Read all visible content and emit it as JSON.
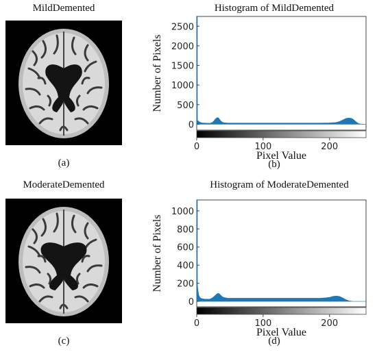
{
  "panels": [
    {
      "image_title": "MildDemented",
      "image_caption": "(a)",
      "chart_title": "Histogram of MildDemented",
      "chart_caption": "(b)"
    },
    {
      "image_title": "ModerateDemented",
      "image_caption": "(c)",
      "chart_title": "Histogram of ModerateDemented",
      "chart_caption": "(d)"
    }
  ],
  "colors": {
    "bar": "#1f77b4",
    "axis": "#444444"
  },
  "chart_data": [
    {
      "type": "area",
      "title": "Histogram of MildDemented",
      "xlabel": "Pixel Value",
      "ylabel": "Number of Pixels",
      "xlim": [
        0,
        255
      ],
      "ylim": [
        -150,
        2750
      ],
      "xticks": [
        0,
        100,
        200
      ],
      "yticks": [
        0,
        500,
        1000,
        1500,
        2000,
        2500
      ],
      "series": [
        {
          "x": [
            0,
            1,
            2,
            3,
            5,
            8,
            12,
            16,
            20,
            24,
            27,
            29,
            31,
            33,
            35,
            37,
            39,
            41,
            44,
            48,
            55,
            70,
            90,
            110,
            130,
            150,
            170,
            185,
            200,
            210,
            215,
            220,
            225,
            230,
            233,
            236,
            240,
            244,
            248,
            255
          ],
          "y": [
            2750,
            100,
            90,
            70,
            50,
            35,
            30,
            25,
            25,
            50,
            110,
            150,
            170,
            160,
            110,
            70,
            50,
            40,
            35,
            30,
            30,
            30,
            30,
            30,
            30,
            30,
            30,
            30,
            35,
            45,
            70,
            110,
            150,
            160,
            150,
            120,
            60,
            15,
            5,
            0
          ]
        }
      ]
    },
    {
      "type": "area",
      "title": "Histogram of ModerateDemented",
      "xlabel": "Pixel Value",
      "ylabel": "Number of Pixels",
      "xlim": [
        0,
        255
      ],
      "ylim": [
        -60,
        1120
      ],
      "xticks": [
        0,
        100,
        200
      ],
      "yticks": [
        0,
        200,
        400,
        600,
        800,
        1000
      ],
      "series": [
        {
          "x": [
            0,
            1,
            2,
            3,
            5,
            8,
            12,
            16,
            20,
            24,
            27,
            30,
            32,
            34,
            36,
            38,
            40,
            43,
            47,
            55,
            70,
            90,
            110,
            130,
            150,
            170,
            185,
            195,
            200,
            205,
            210,
            215,
            218,
            222,
            226,
            230,
            235,
            240,
            255
          ],
          "y": [
            1120,
            180,
            120,
            70,
            40,
            30,
            25,
            25,
            25,
            40,
            60,
            80,
            90,
            85,
            70,
            55,
            45,
            40,
            35,
            35,
            35,
            35,
            35,
            35,
            35,
            35,
            35,
            40,
            45,
            55,
            60,
            55,
            45,
            30,
            15,
            5,
            0,
            0,
            0
          ]
        }
      ]
    }
  ]
}
